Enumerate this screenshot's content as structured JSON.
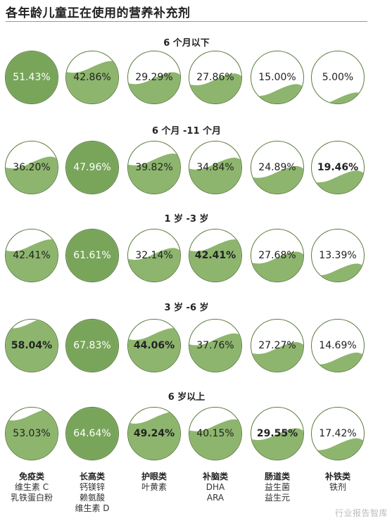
{
  "title": "各年龄儿童正在使用的营养补充剂",
  "watermark": "行业报告智库",
  "colors": {
    "full": "#78a55a",
    "wave": "#8db56e",
    "border": "#5b7d3e",
    "dark_text": "#ffffff"
  },
  "chart_data": {
    "type": "bubble-grid",
    "value_unit": "%",
    "categories": [
      {
        "name": "免疫类",
        "items": [
          "维生素 C",
          "乳铁蛋白粉"
        ]
      },
      {
        "name": "长高类",
        "items": [
          "钙镁锌",
          "赖氨酸",
          "维生素 D"
        ]
      },
      {
        "name": "护眼类",
        "items": [
          "叶黄素"
        ]
      },
      {
        "name": "补脑类",
        "items": [
          "DHA",
          "ARA"
        ]
      },
      {
        "name": "肠道类",
        "items": [
          "益生菌",
          "益生元"
        ]
      },
      {
        "name": "补铁类",
        "items": [
          "铁剂"
        ]
      }
    ],
    "groups": [
      {
        "label": "6 个月以下",
        "values": [
          51.43,
          42.86,
          29.29,
          27.86,
          15.0,
          5.0
        ],
        "labels": [
          "51.43%",
          "42.86%",
          "29.29%",
          "27.86%",
          "15.00%",
          "5.00%"
        ],
        "highlight": 0
      },
      {
        "label": "6 个月 -11 个月",
        "values": [
          36.2,
          47.96,
          39.82,
          34.84,
          24.89,
          19.46
        ],
        "labels": [
          "36.20%",
          "47.96%",
          "39.82%",
          "34.84%",
          "24.89%",
          "19.46%"
        ],
        "highlight": 1
      },
      {
        "label": "1 岁 -3 岁",
        "values": [
          42.41,
          61.61,
          32.14,
          42.41,
          27.68,
          13.39
        ],
        "labels": [
          "42.41%",
          "61.61%",
          "32.14%",
          "42.41%",
          "27.68%",
          "13.39%"
        ],
        "highlight": 1
      },
      {
        "label": "3 岁 -6 岁",
        "values": [
          58.04,
          67.83,
          44.06,
          37.76,
          27.27,
          14.69
        ],
        "labels": [
          "58.04%",
          "67.83%",
          "44.06%",
          "37.76%",
          "27.27%",
          "14.69%"
        ],
        "highlight": 1
      },
      {
        "label": "6 岁以上",
        "values": [
          53.03,
          64.64,
          49.24,
          40.15,
          29.55,
          17.42
        ],
        "labels": [
          "53.03%",
          "64.64%",
          "49.24%",
          "40.15%",
          "29.55%",
          "17.42%"
        ],
        "highlight": 1
      }
    ]
  }
}
